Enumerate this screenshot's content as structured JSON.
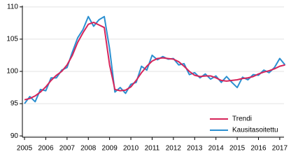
{
  "chart_data": {
    "type": "line",
    "x": [
      2005,
      2005.25,
      2005.5,
      2005.75,
      2006,
      2006.25,
      2006.5,
      2006.75,
      2007,
      2007.25,
      2007.5,
      2007.75,
      2008,
      2008.25,
      2008.5,
      2008.75,
      2009,
      2009.25,
      2009.5,
      2009.75,
      2010,
      2010.25,
      2010.5,
      2010.75,
      2011,
      2011.25,
      2011.5,
      2011.75,
      2012,
      2012.25,
      2012.5,
      2012.75,
      2013,
      2013.25,
      2013.5,
      2013.75,
      2014,
      2014.25,
      2014.5,
      2014.75,
      2015,
      2015.25,
      2015.5,
      2015.75,
      2016,
      2016.25,
      2016.5,
      2016.75,
      2017,
      2017.25
    ],
    "series": [
      {
        "name": "Trendi",
        "color": "#d6245a",
        "values": [
          95.6,
          95.8,
          96.2,
          96.8,
          97.6,
          98.6,
          99.4,
          100.0,
          101.0,
          102.5,
          104.5,
          106.0,
          107.3,
          107.6,
          107.2,
          106.8,
          101.0,
          97.2,
          97.0,
          97.1,
          97.6,
          98.6,
          99.8,
          100.8,
          101.6,
          102.0,
          102.1,
          102.0,
          101.9,
          101.5,
          100.8,
          100.0,
          99.4,
          99.2,
          99.3,
          99.3,
          99.0,
          98.6,
          98.5,
          98.6,
          98.7,
          98.9,
          99.0,
          99.2,
          99.6,
          99.9,
          100.1,
          100.4,
          100.8,
          101.0
        ]
      },
      {
        "name": "Kausitasoitettu",
        "color": "#2b8fd0",
        "values": [
          95.0,
          96.1,
          95.3,
          97.2,
          97.0,
          99.0,
          99.0,
          100.2,
          100.6,
          103.0,
          105.2,
          106.5,
          108.5,
          107.0,
          108.0,
          108.5,
          103.5,
          96.8,
          97.5,
          96.6,
          98.0,
          98.3,
          100.8,
          100.2,
          102.5,
          101.8,
          102.3,
          101.9,
          102.0,
          101.0,
          101.2,
          99.5,
          99.8,
          99.0,
          99.6,
          98.8,
          99.3,
          98.3,
          99.2,
          98.3,
          97.5,
          99.1,
          98.7,
          99.5,
          99.4,
          100.2,
          99.8,
          100.6,
          102.0,
          101.0
        ]
      }
    ],
    "xlim": [
      2004.9,
      2017.2
    ],
    "xticks": [
      2005,
      2006,
      2007,
      2008,
      2009,
      2010,
      2011,
      2012,
      2013,
      2014,
      2015,
      2016,
      2017
    ],
    "ylim": [
      89.8,
      110.2
    ],
    "yticks": [
      90,
      95,
      100,
      105,
      110
    ],
    "grid": true,
    "legend": "lower right"
  }
}
